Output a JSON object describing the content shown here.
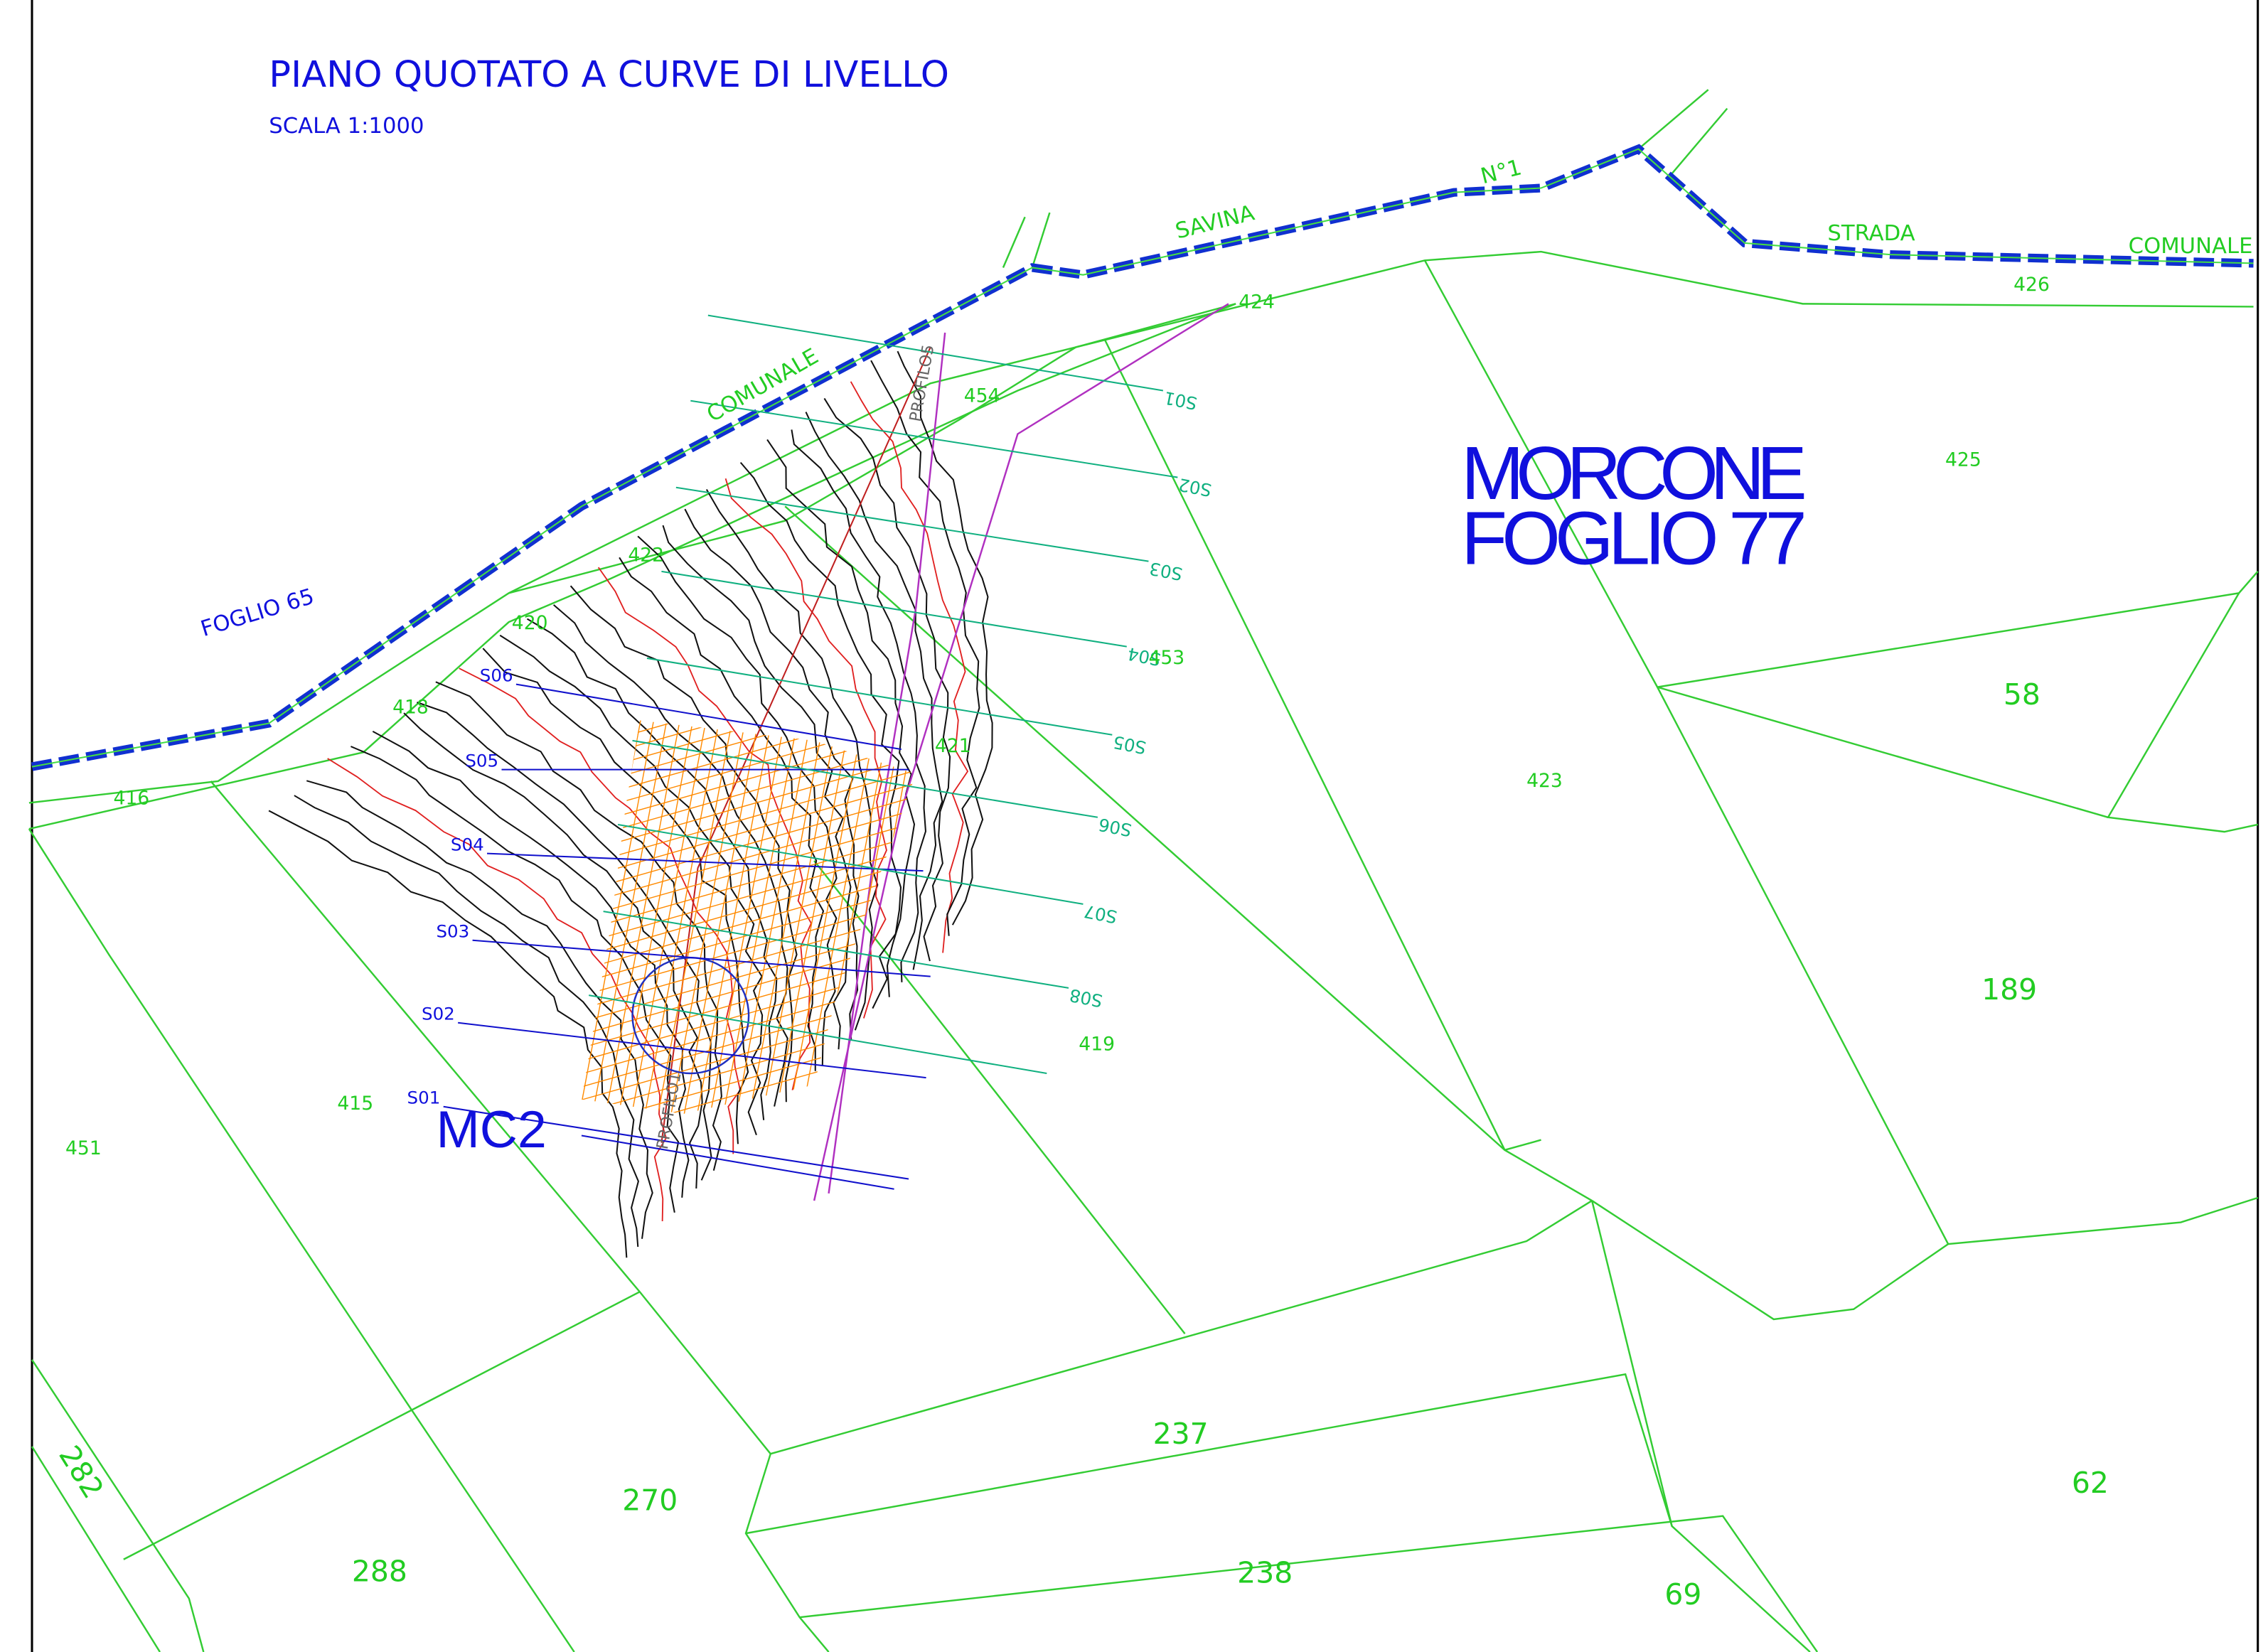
{
  "title": "PIANO QUOTATO A CURVE DI LIVELLO",
  "scale": "SCALA 1:1000",
  "sheet": {
    "municipality": "MORCONE",
    "number": "FOGLIO 77"
  },
  "site": "MC2",
  "road_labels": [
    "SAVINA",
    "N°1",
    "STRADA",
    "COMUNALE",
    "COMUNALE",
    "FOGLIO 65"
  ],
  "parcels": [
    "424",
    "426",
    "425",
    "454",
    "422",
    "420",
    "418",
    "416",
    "453",
    "421",
    "58",
    "423",
    "189",
    "419",
    "415",
    "451",
    "237",
    "270",
    "288",
    "238",
    "62",
    "69",
    "282"
  ],
  "sections_left": [
    "S01",
    "S02",
    "S03",
    "S04",
    "S05",
    "S06"
  ],
  "sections_right": [
    "S01",
    "S02",
    "S03",
    "S04",
    "S05",
    "S06",
    "S07",
    "S08"
  ],
  "profiles": [
    "PROFILO5",
    "PROFILO1"
  ]
}
